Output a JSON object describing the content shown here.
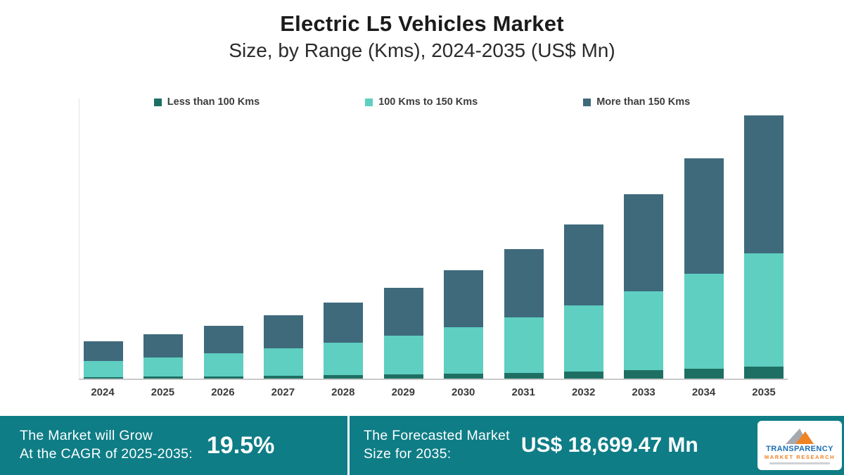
{
  "header": {
    "title": "Electric L5 Vehicles Market",
    "subtitle": "Size, by Range (Kms), 2024-2035 (US$ Mn)"
  },
  "chart_data": {
    "type": "bar",
    "stacked": true,
    "title": "Electric L5 Vehicles Market",
    "subtitle": "Size, by Range (Kms), 2024-2035 (US$ Mn)",
    "unit": "US$ Mn",
    "categories": [
      "2024",
      "2025",
      "2026",
      "2027",
      "2028",
      "2029",
      "2030",
      "2031",
      "2032",
      "2033",
      "2034",
      "2035"
    ],
    "series": [
      {
        "name": "Less than 100 Kms",
        "color": "#1e6f63",
        "values": [
          119,
          142,
          169,
          203,
          242,
          289,
          346,
          413,
          494,
          590,
          705,
          841
        ]
      },
      {
        "name": "100 Kms to 150 Kms",
        "color": "#5ecfc1",
        "values": [
          1134,
          1355,
          1620,
          1935,
          2313,
          2764,
          3303,
          3947,
          4716,
          5636,
          6735,
          8041
        ]
      },
      {
        "name": "More than 150 Kms",
        "color": "#3f6a7c",
        "values": [
          1385,
          1655,
          1977,
          2363,
          2824,
          3374,
          4032,
          4818,
          5758,
          6881,
          8223,
          9817.47
        ]
      }
    ],
    "totals": [
      2638,
      3152,
      3766,
      4501,
      5379,
      6427,
      7681,
      9178,
      10968,
      13107,
      15663,
      18699.47
    ],
    "ylim": [
      0,
      20000
    ],
    "grid": false,
    "legend_position": "top"
  },
  "footer": {
    "background": "#0e7d86",
    "cagr_label_line1": "The Market will Grow",
    "cagr_label_line2": "At the CAGR of 2025-2035:",
    "cagr_value": "19.5%",
    "forecast_label_line1": "The Forecasted Market",
    "forecast_label_line2": "Size for 2035:",
    "forecast_value": "US$ 18,699.47 Mn"
  },
  "logo": {
    "line1": "TRANSPARENCY",
    "line2": "MARKET RESEARCH"
  }
}
